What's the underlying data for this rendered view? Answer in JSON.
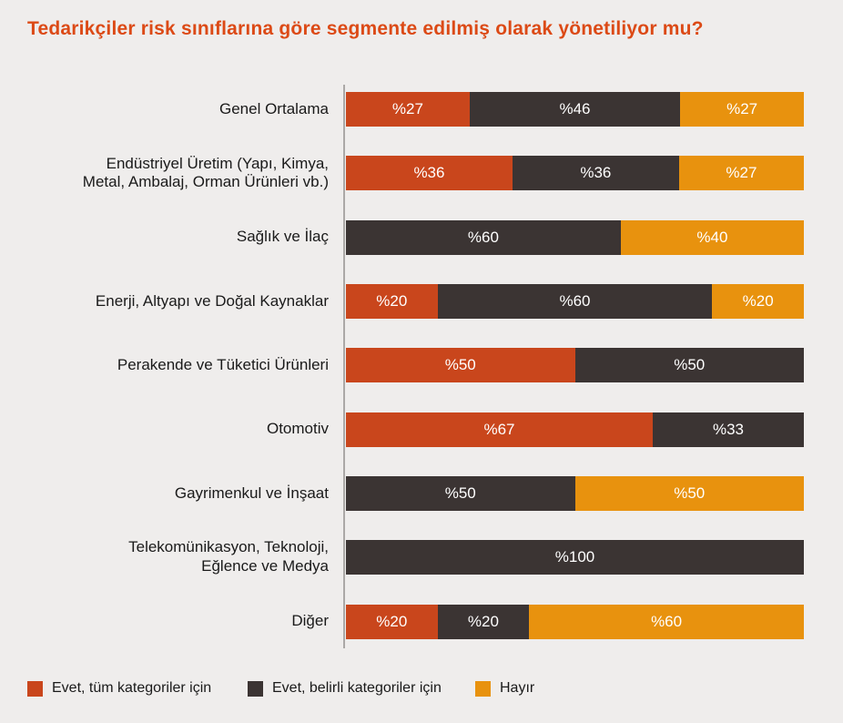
{
  "title": "Tedarikçiler risk sınıflarına göre segmente edilmiş olarak yönetiliyor mu?",
  "colors": {
    "title": "#dc4a16",
    "background": "#efedec",
    "axis_line": "#aba8a6",
    "bar_value_text": "#ffffff",
    "category_text": "#1a1a1a"
  },
  "legend": {
    "items": [
      {
        "label": "Evet, tüm kategoriler için",
        "color": "#c9461c"
      },
      {
        "label": "Evet, belirli kategoriler için",
        "color": "#3b3433"
      },
      {
        "label": "Hayır",
        "color": "#e8920e"
      }
    ]
  },
  "chart_data": {
    "type": "bar",
    "orientation": "horizontal",
    "stacked": true,
    "value_prefix": "%",
    "xlim": [
      0,
      100
    ],
    "grid": false,
    "legend_position": "bottom",
    "title": "Tedarikçiler risk sınıflarına göre segmente edilmiş olarak yönetiliyor mu?",
    "categories": [
      "Genel Ortalama",
      "Endüstriyel Üretim (Yapı, Kimya,\nMetal, Ambalaj, Orman Ürünleri vb.)",
      "Sağlık ve İlaç",
      "Enerji, Altyapı ve Doğal Kaynaklar",
      "Perakende ve Tüketici Ürünleri",
      "Otomotiv",
      "Gayrimenkul ve İnşaat",
      "Telekomünikasyon, Teknoloji,\nEğlence ve Medya",
      "Diğer"
    ],
    "series": [
      {
        "name": "Evet, tüm kategoriler için",
        "color": "#c9461c",
        "values": [
          27,
          36,
          0,
          20,
          50,
          67,
          0,
          0,
          20
        ]
      },
      {
        "name": "Evet, belirli kategoriler için",
        "color": "#3b3433",
        "values": [
          46,
          36,
          60,
          60,
          50,
          33,
          50,
          100,
          20
        ]
      },
      {
        "name": "Hayır",
        "color": "#e8920e",
        "values": [
          27,
          27,
          40,
          20,
          0,
          0,
          50,
          0,
          60
        ]
      }
    ]
  }
}
